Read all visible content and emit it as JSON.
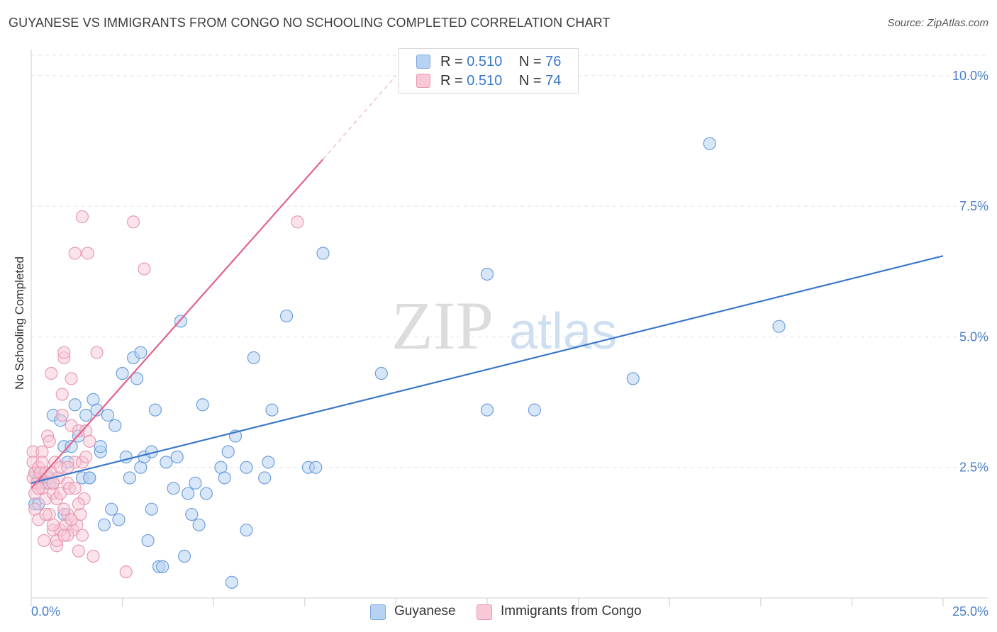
{
  "header": {
    "title": "GUYANESE VS IMMIGRANTS FROM CONGO NO SCHOOLING COMPLETED CORRELATION CHART",
    "source": "Source: ZipAtlas.com"
  },
  "legend": {
    "row1": {
      "r_label": "R = ",
      "r_value": "0.510",
      "n_label": "N = ",
      "n_value": "76"
    },
    "row2": {
      "r_label": "R = ",
      "r_value": "0.510",
      "n_label": "N = ",
      "n_value": "74"
    }
  },
  "bottom_legend": {
    "series1": "Guyanese",
    "series2": "Immigrants from Congo"
  },
  "watermark": {
    "zip": "ZIP",
    "atlas": "atlas"
  },
  "colors": {
    "blue": "#3a78c9",
    "blue_fill": "#b8d3f2",
    "pink": "#e0628f",
    "pink_fill": "#f8c8d6",
    "grid": "#e2e2e2"
  },
  "chart_data": {
    "type": "scatter",
    "title": "GUYANESE VS IMMIGRANTS FROM CONGO NO SCHOOLING COMPLETED CORRELATION CHART",
    "xlabel": "",
    "ylabel": "No Schooling Completed",
    "xlim": [
      0,
      25
    ],
    "ylim": [
      0,
      10.5
    ],
    "x_tick_labels": [
      "0.0%",
      "25.0%"
    ],
    "y_ticks": [
      2.5,
      5.0,
      7.5,
      10.0
    ],
    "y_tick_labels": [
      "2.5%",
      "5.0%",
      "7.5%",
      "10.0%"
    ],
    "grid": true,
    "series": [
      {
        "name": "Guyanese",
        "r": 0.51,
        "n": 76,
        "trend": {
          "x": [
            0,
            25
          ],
          "y": [
            2.2,
            6.55
          ]
        },
        "points": [
          [
            0.1,
            2.4
          ],
          [
            0.1,
            1.8
          ],
          [
            0.2,
            2.3
          ],
          [
            0.3,
            2.2
          ],
          [
            0.4,
            2.2
          ],
          [
            0.5,
            2.3
          ],
          [
            0.6,
            2.2
          ],
          [
            0.6,
            3.5
          ],
          [
            0.8,
            3.4
          ],
          [
            0.9,
            2.9
          ],
          [
            0.9,
            1.6
          ],
          [
            1.0,
            2.6
          ],
          [
            1.1,
            2.9
          ],
          [
            1.2,
            3.7
          ],
          [
            1.3,
            3.1
          ],
          [
            1.4,
            2.3
          ],
          [
            1.5,
            3.5
          ],
          [
            1.6,
            2.3
          ],
          [
            1.6,
            2.3
          ],
          [
            1.7,
            3.8
          ],
          [
            1.8,
            3.6
          ],
          [
            1.9,
            2.8
          ],
          [
            1.9,
            2.9
          ],
          [
            2.0,
            1.4
          ],
          [
            2.1,
            3.5
          ],
          [
            2.2,
            1.7
          ],
          [
            2.3,
            3.3
          ],
          [
            2.4,
            1.5
          ],
          [
            2.5,
            4.3
          ],
          [
            2.6,
            2.7
          ],
          [
            2.7,
            2.3
          ],
          [
            2.8,
            4.6
          ],
          [
            2.9,
            4.2
          ],
          [
            3.0,
            4.7
          ],
          [
            3.0,
            2.5
          ],
          [
            3.1,
            2.7
          ],
          [
            3.2,
            1.1
          ],
          [
            3.3,
            2.8
          ],
          [
            3.3,
            1.7
          ],
          [
            3.4,
            3.6
          ],
          [
            3.5,
            0.6
          ],
          [
            3.6,
            0.6
          ],
          [
            3.7,
            2.6
          ],
          [
            3.9,
            2.1
          ],
          [
            4.0,
            2.7
          ],
          [
            4.1,
            5.3
          ],
          [
            4.2,
            0.8
          ],
          [
            4.3,
            2.0
          ],
          [
            4.4,
            1.6
          ],
          [
            4.5,
            2.2
          ],
          [
            4.6,
            1.4
          ],
          [
            4.7,
            3.7
          ],
          [
            4.8,
            2.0
          ],
          [
            5.2,
            2.5
          ],
          [
            5.3,
            2.3
          ],
          [
            5.4,
            2.8
          ],
          [
            5.5,
            0.3
          ],
          [
            5.6,
            3.1
          ],
          [
            5.9,
            2.5
          ],
          [
            5.9,
            1.3
          ],
          [
            6.1,
            4.6
          ],
          [
            6.4,
            2.3
          ],
          [
            6.5,
            2.6
          ],
          [
            6.6,
            3.6
          ],
          [
            7.0,
            5.4
          ],
          [
            7.6,
            2.5
          ],
          [
            7.8,
            2.5
          ],
          [
            8.0,
            6.6
          ],
          [
            9.6,
            4.3
          ],
          [
            12.5,
            6.2
          ],
          [
            12.5,
            3.6
          ],
          [
            13.8,
            3.6
          ],
          [
            16.5,
            4.2
          ],
          [
            18.6,
            8.7
          ],
          [
            20.5,
            5.2
          ],
          [
            0.2,
            1.8
          ]
        ]
      },
      {
        "name": "Immigrants from Congo",
        "r": 0.51,
        "n": 74,
        "trend": {
          "x": [
            0,
            8
          ],
          "y": [
            2.1,
            8.4
          ]
        },
        "trend_dashed": {
          "x": [
            8,
            10
          ],
          "y": [
            8.4,
            10.0
          ]
        },
        "points": [
          [
            0.05,
            2.8
          ],
          [
            0.05,
            2.6
          ],
          [
            0.05,
            2.3
          ],
          [
            0.1,
            2.4
          ],
          [
            0.1,
            2.0
          ],
          [
            0.1,
            1.7
          ],
          [
            0.15,
            2.2
          ],
          [
            0.2,
            1.5
          ],
          [
            0.2,
            2.5
          ],
          [
            0.25,
            2.4
          ],
          [
            0.3,
            2.1
          ],
          [
            0.3,
            2.8
          ],
          [
            0.35,
            1.1
          ],
          [
            0.4,
            2.4
          ],
          [
            0.4,
            1.9
          ],
          [
            0.45,
            3.1
          ],
          [
            0.5,
            2.2
          ],
          [
            0.5,
            3.0
          ],
          [
            0.55,
            2.4
          ],
          [
            0.55,
            4.3
          ],
          [
            0.6,
            1.3
          ],
          [
            0.6,
            2.0
          ],
          [
            0.65,
            2.6
          ],
          [
            0.7,
            1.9
          ],
          [
            0.7,
            1.0
          ],
          [
            0.75,
            2.3
          ],
          [
            0.8,
            2.0
          ],
          [
            0.8,
            1.3
          ],
          [
            0.85,
            3.5
          ],
          [
            0.85,
            3.9
          ],
          [
            0.9,
            4.6
          ],
          [
            0.9,
            4.7
          ],
          [
            0.95,
            1.4
          ],
          [
            1.0,
            1.6
          ],
          [
            1.0,
            2.2
          ],
          [
            1.05,
            2.1
          ],
          [
            1.1,
            3.3
          ],
          [
            1.1,
            4.2
          ],
          [
            1.15,
            1.3
          ],
          [
            1.2,
            6.6
          ],
          [
            1.2,
            2.6
          ],
          [
            1.25,
            1.4
          ],
          [
            1.3,
            3.2
          ],
          [
            1.3,
            0.9
          ],
          [
            1.35,
            1.6
          ],
          [
            1.4,
            7.3
          ],
          [
            1.4,
            2.6
          ],
          [
            1.45,
            1.9
          ],
          [
            1.5,
            2.7
          ],
          [
            1.5,
            3.2
          ],
          [
            1.55,
            6.6
          ],
          [
            1.6,
            3.0
          ],
          [
            1.7,
            0.8
          ],
          [
            1.8,
            4.7
          ],
          [
            0.3,
            2.6
          ],
          [
            0.5,
            1.6
          ],
          [
            0.6,
            2.2
          ],
          [
            0.7,
            1.1
          ],
          [
            0.8,
            2.5
          ],
          [
            0.9,
            1.7
          ],
          [
            1.0,
            1.2
          ],
          [
            1.1,
            1.5
          ],
          [
            1.2,
            2.1
          ],
          [
            1.3,
            1.8
          ],
          [
            2.6,
            0.5
          ],
          [
            2.8,
            7.2
          ],
          [
            3.1,
            6.3
          ],
          [
            7.3,
            7.2
          ],
          [
            0.2,
            2.1
          ],
          [
            0.4,
            1.6
          ],
          [
            0.6,
            1.4
          ],
          [
            0.9,
            1.2
          ],
          [
            1.0,
            2.5
          ],
          [
            1.4,
            1.2
          ]
        ]
      }
    ]
  }
}
